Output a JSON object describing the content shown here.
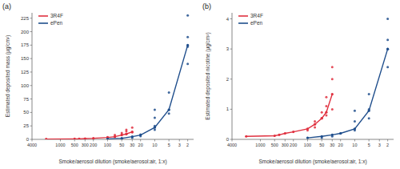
{
  "chart_data": [
    {
      "type": "line",
      "title": "(a)",
      "x_label": "Smoke/aerosol dilution (smoke/aerosol:air, 1:x)",
      "y_label": "Estimated deposited mass (µg/cm²)",
      "log": "x",
      "legend": "top-left",
      "xlim": [
        4000,
        1.5
      ],
      "xticks": [
        4000,
        1000,
        500,
        300,
        200,
        100,
        50,
        30,
        20,
        10,
        5,
        3,
        2
      ],
      "ylim": [
        0,
        235
      ],
      "yticks": [
        0,
        25,
        50,
        75,
        100,
        125,
        150,
        175,
        200,
        225
      ],
      "series": [
        {
          "name": "3R4F",
          "color": "#e0303f",
          "marker": "circle",
          "x": [
            2000,
            500,
            400,
            300,
            200,
            100,
            70,
            50,
            40,
            30
          ],
          "values": [
            0.5,
            0.8,
            1,
            1.5,
            2,
            3.5,
            5,
            8,
            10,
            14
          ],
          "replicates": {
            "x": [
              100,
              70,
              70,
              50,
              50,
              40,
              40,
              40,
              30,
              30
            ],
            "values": [
              4,
              5,
              8,
              9,
              12,
              10,
              15,
              18,
              13,
              22
            ]
          }
        },
        {
          "name": "ePen",
          "color": "#1f4e8c",
          "marker": "circle",
          "x": [
            100,
            50,
            30,
            20,
            10,
            5,
            2
          ],
          "values": [
            1,
            2,
            5,
            8,
            22,
            55,
            175
          ],
          "replicates": {
            "x": [
              50,
              30,
              20,
              20,
              10,
              10,
              10,
              10,
              5,
              5,
              5,
              2,
              2,
              2,
              2
            ],
            "values": [
              1,
              3,
              6,
              9,
              18,
              25,
              40,
              55,
              48,
              55,
              87,
              140,
              172,
              190,
              230
            ]
          }
        }
      ]
    },
    {
      "type": "line",
      "title": "(b)",
      "x_label": "Smoke/aerosol dilution (smoke/aerosol:air, 1:x)",
      "y_label": "Estimated deposited nicotine (µg/cm²)",
      "log": "x",
      "legend": "top-left",
      "xlim": [
        4000,
        1.5
      ],
      "xticks": [
        4000,
        1000,
        500,
        300,
        200,
        100,
        50,
        30,
        20,
        10,
        5,
        3,
        2
      ],
      "ylim": [
        0,
        4.2
      ],
      "yticks": [
        0,
        1,
        2,
        3,
        4
      ],
      "series": [
        {
          "name": "3R4F",
          "color": "#e0303f",
          "marker": "circle",
          "x": [
            2000,
            500,
            400,
            300,
            200,
            100,
            70,
            50,
            40,
            30
          ],
          "values": [
            0.1,
            0.12,
            0.15,
            0.2,
            0.25,
            0.35,
            0.5,
            0.7,
            0.9,
            1.5
          ],
          "replicates": {
            "x": [
              100,
              70,
              70,
              50,
              50,
              40,
              40,
              40,
              30,
              30,
              30
            ],
            "values": [
              0.3,
              0.4,
              0.6,
              0.7,
              0.9,
              0.8,
              1.1,
              1.4,
              1.0,
              2.0,
              2.4
            ]
          }
        },
        {
          "name": "ePen",
          "color": "#1f4e8c",
          "marker": "circle",
          "x": [
            100,
            50,
            30,
            20,
            10,
            5,
            2
          ],
          "values": [
            0.05,
            0.1,
            0.15,
            0.2,
            0.35,
            0.95,
            3.0
          ],
          "replicates": {
            "x": [
              50,
              30,
              20,
              10,
              10,
              10,
              5,
              5,
              5,
              2,
              2,
              2,
              2
            ],
            "values": [
              0.05,
              0.1,
              0.2,
              0.3,
              0.6,
              0.95,
              0.7,
              1.0,
              1.5,
              2.4,
              3.0,
              3.3,
              4.0
            ]
          }
        }
      ]
    }
  ]
}
